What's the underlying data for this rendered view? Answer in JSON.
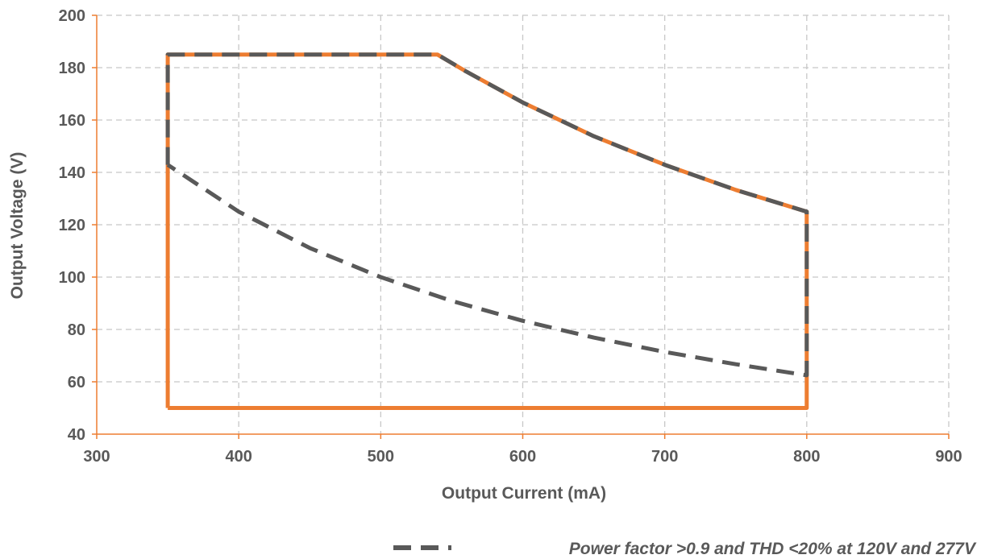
{
  "chart_data": {
    "type": "line",
    "title": "",
    "xlabel": "Output Current (mA)",
    "ylabel": "Output Voltage (V)",
    "xlim": [
      300,
      900
    ],
    "ylim": [
      40,
      200
    ],
    "x_ticks": [
      300,
      400,
      500,
      600,
      700,
      800,
      900
    ],
    "y_ticks": [
      40,
      60,
      80,
      100,
      120,
      140,
      160,
      180,
      200
    ],
    "grid": true,
    "legend_position": "bottom-right",
    "series": [
      {
        "key": "operating_window",
        "color": "#ED7D31",
        "style": "solid",
        "x": [
          350,
          350,
          540,
          560,
          600,
          650,
          700,
          750,
          800,
          800,
          350
        ],
        "y": [
          50,
          185,
          185,
          178.6,
          166.7,
          153.8,
          142.9,
          133.3,
          125,
          50,
          50
        ]
      },
      {
        "key": "pf_thd_region",
        "name": "Power factor >0.9 and THD <20% at 120V and 277V",
        "color": "#595959",
        "style": "dashed",
        "x": [
          350,
          350,
          540,
          560,
          600,
          650,
          700,
          750,
          800,
          800,
          750,
          700,
          650,
          600,
          550,
          500,
          450,
          400,
          350
        ],
        "y": [
          142.9,
          185,
          185,
          178.6,
          166.7,
          153.8,
          142.9,
          133.3,
          125,
          62.5,
          66.7,
          71.4,
          76.9,
          83.3,
          90.9,
          100,
          111.1,
          125,
          142.9
        ]
      }
    ],
    "colors": {
      "grid": "#C8C8C8",
      "axis": "#ED7D31",
      "text": "#595959"
    }
  }
}
